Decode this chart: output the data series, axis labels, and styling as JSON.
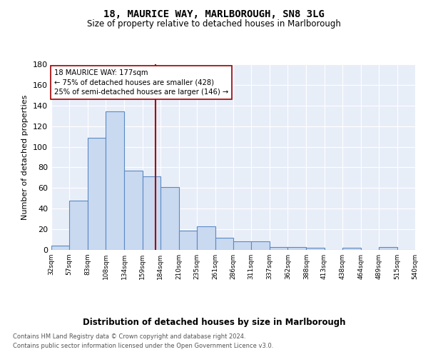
{
  "title1": "18, MAURICE WAY, MARLBOROUGH, SN8 3LG",
  "title2": "Size of property relative to detached houses in Marlborough",
  "xlabel": "Distribution of detached houses by size in Marlborough",
  "ylabel": "Number of detached properties",
  "footnote1": "Contains HM Land Registry data © Crown copyright and database right 2024.",
  "footnote2": "Contains public sector information licensed under the Open Government Licence v3.0.",
  "bar_edges": [
    32,
    57,
    83,
    108,
    134,
    159,
    184,
    210,
    235,
    261,
    286,
    311,
    337,
    362,
    388,
    413,
    438,
    464,
    489,
    515,
    540
  ],
  "bar_heights": [
    4,
    48,
    109,
    134,
    77,
    71,
    61,
    19,
    23,
    12,
    8,
    8,
    3,
    3,
    2,
    0,
    2,
    0,
    3,
    0
  ],
  "bar_color": "#c9d9f0",
  "bar_edge_color": "#5a8ac6",
  "property_size": 177,
  "vline_color": "#a00000",
  "annotation_line1": "18 MAURICE WAY: 177sqm",
  "annotation_line2": "← 75% of detached houses are smaller (428)",
  "annotation_line3": "25% of semi-detached houses are larger (146) →",
  "annotation_box_color": "white",
  "annotation_box_edge_color": "#a00000",
  "ylim": [
    0,
    180
  ],
  "yticks": [
    0,
    20,
    40,
    60,
    80,
    100,
    120,
    140,
    160,
    180
  ],
  "axes_background": "#e8eef8",
  "grid_color": "white"
}
